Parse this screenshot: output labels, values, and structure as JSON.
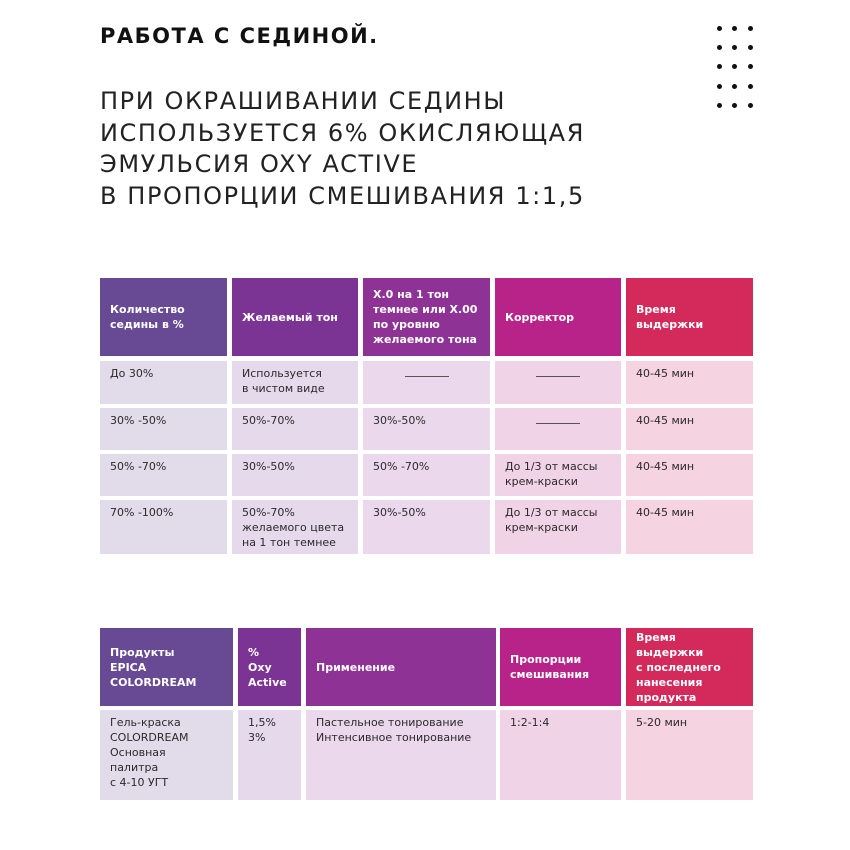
{
  "title": "РАБОТА С СЕДИНОЙ.",
  "subtitle_lines": [
    "ПРИ ОКРАШИВАНИИ СЕДИНЫ",
    "ИСПОЛЬЗУЕТСЯ 6% ОКИСЛЯЮЩАЯ",
    "ЭМУЛЬСИЯ OXY ACTIVE",
    "В ПРОПОРЦИИ СМЕШИВАНИЯ 1:1,5"
  ],
  "colors": {
    "header": [
      "#674a93",
      "#7b3394",
      "#8e3296",
      "#b72388",
      "#d42a5b"
    ],
    "body": [
      "#e2dcea",
      "#e6d9ec",
      "#ebd8ec",
      "#f1d3e8",
      "#f6d3e0"
    ]
  },
  "table1": {
    "headers": [
      "Количество\nседины в %",
      "Желаемый тон",
      "X.0 на 1 тон\nтемнее или X.00\nпо уровню\nжелаемого тона",
      "Корректор",
      "Время\nвыдержки"
    ],
    "rows": [
      [
        "До 30%",
        "Используется\nв чистом виде",
        "————",
        "————",
        "40-45 мин"
      ],
      [
        "30% -50%",
        "50%-70%",
        "30%-50%",
        "————",
        "40-45 мин"
      ],
      [
        "50% -70%",
        "30%-50%",
        "50% -70%",
        "До 1/3 от массы\nкрем-краски",
        "40-45 мин"
      ],
      [
        "70% -100%",
        "50%-70%\nжелаемого цвета\nна 1 тон темнее",
        "30%-50%",
        "До 1/3 от массы\nкрем-краски",
        "40-45 мин"
      ]
    ]
  },
  "table2": {
    "headers": [
      "Продукты\nEPICA\nCOLORDREAM",
      "%\nOxy\nActive",
      "Применение",
      "Пропорции\nсмешивания",
      "Время выдержки\nс последнего\nнанесения\nпродукта"
    ],
    "rows": [
      [
        "Гель-краска\nCOLORDREAM\nОсновная\nпалитра\nс 4-10 УГТ",
        "1,5%\n3%",
        "Пастельное тонирование\nИнтенсивное тонирование",
        "1:2-1:4",
        "5-20 мин"
      ]
    ]
  }
}
